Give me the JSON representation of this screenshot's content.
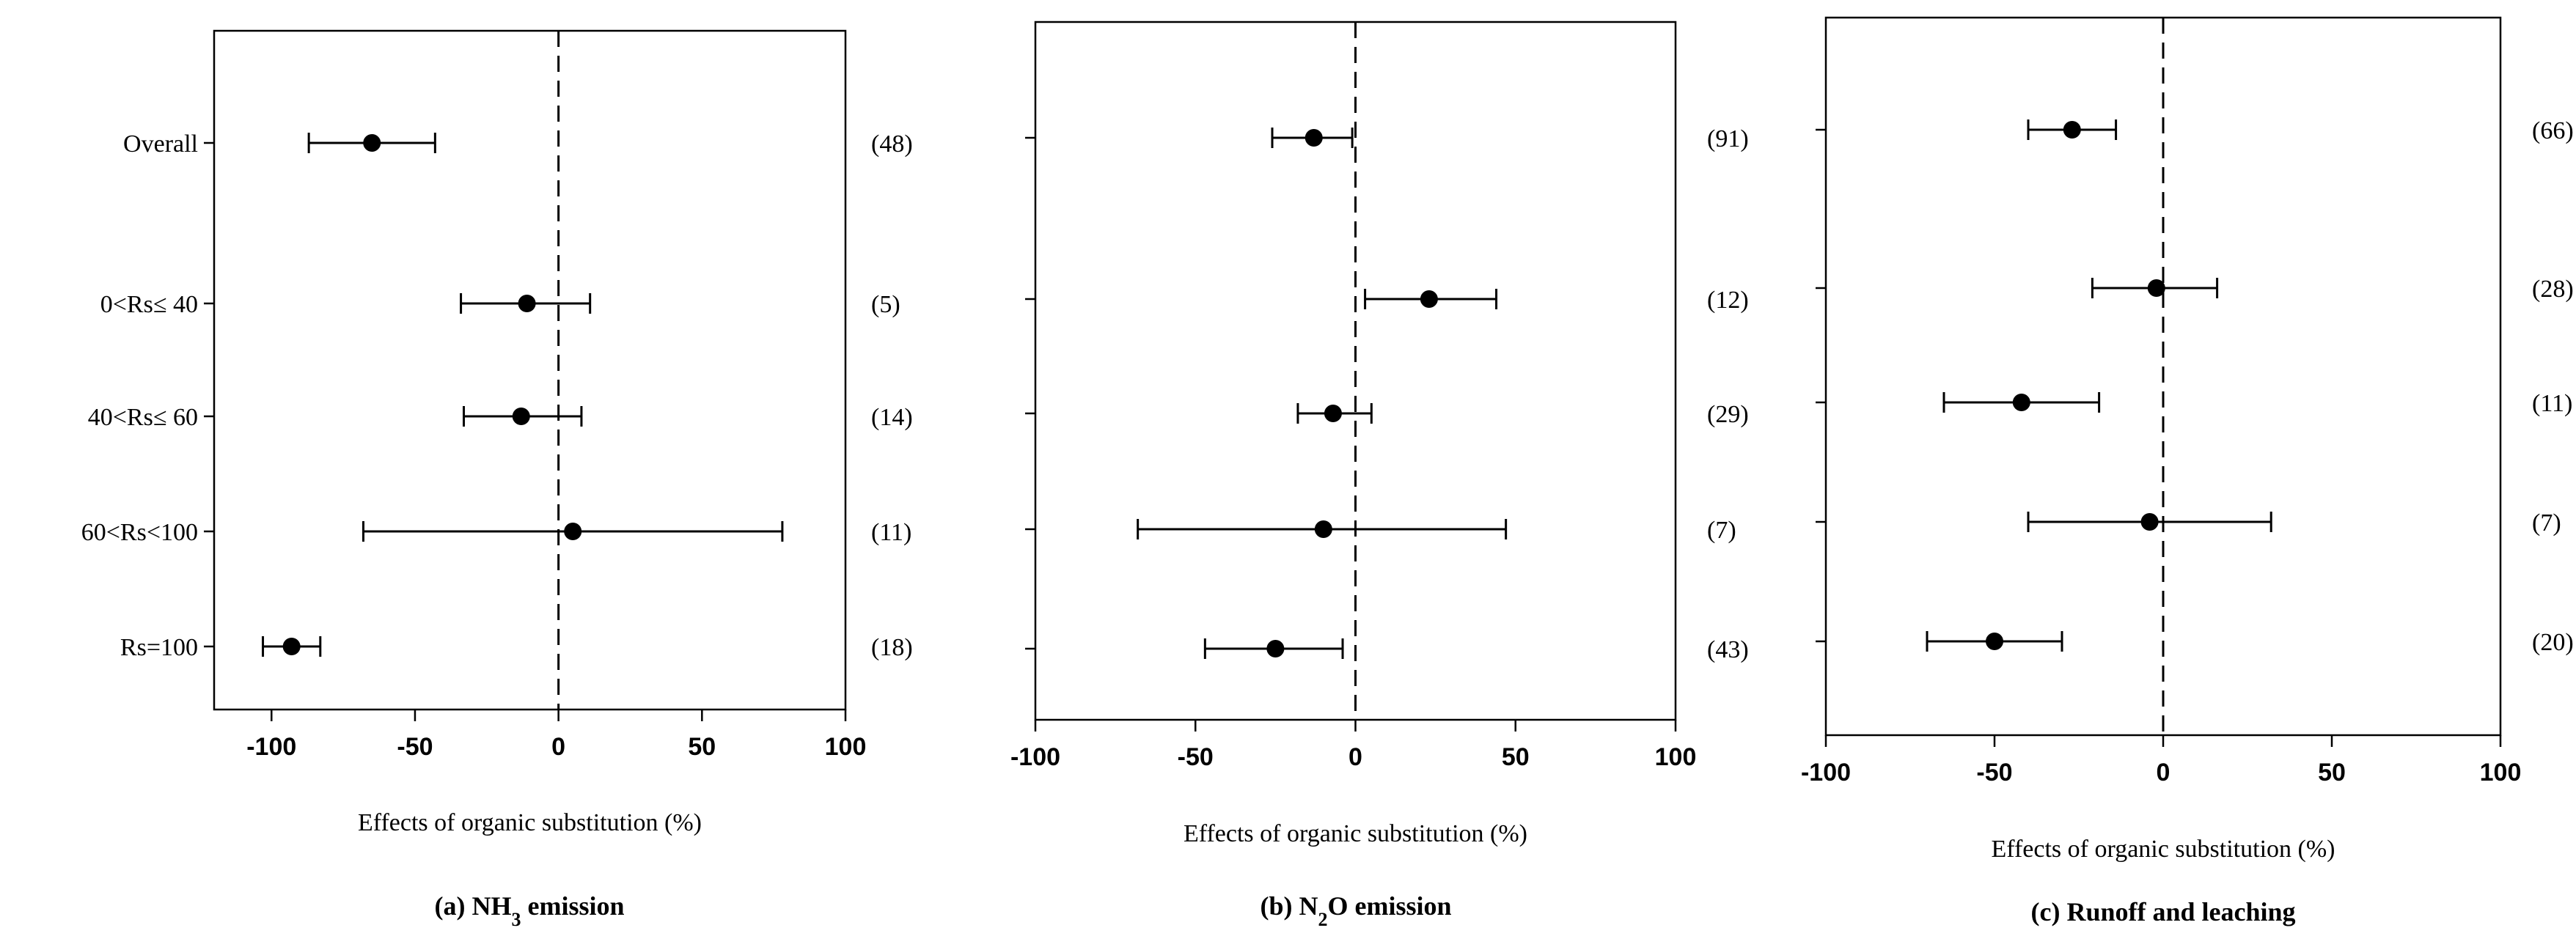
{
  "chart_data": [
    {
      "type": "forest",
      "title": "(a) NH3 emission",
      "title_parts": [
        {
          "text": "(a) NH",
          "sub": false
        },
        {
          "text": "3",
          "sub": true
        },
        {
          "text": " emission",
          "sub": false
        }
      ],
      "xlabel": "Effects of organic substitution (%)",
      "xlim": [
        -120,
        100
      ],
      "xticks": [
        -100,
        -50,
        0,
        50,
        100
      ],
      "reference_line": 0,
      "categories": [
        "Overall",
        "0<Rs≤ 40",
        "40<Rs≤ 60",
        "60<Rs<100",
        "Rs=100"
      ],
      "estimates": [
        -65,
        -11,
        -13,
        5,
        -93
      ],
      "ci_low": [
        -87,
        -34,
        -33,
        -68,
        -103
      ],
      "ci_high": [
        -43,
        11,
        8,
        78,
        -83
      ],
      "n_labels": [
        "(48)",
        "(5)",
        "(14)",
        "(11)",
        "(18)"
      ]
    },
    {
      "type": "forest",
      "title": "(b) N2O emission",
      "title_parts": [
        {
          "text": "(b) N",
          "sub": false
        },
        {
          "text": "2",
          "sub": true
        },
        {
          "text": "O emission",
          "sub": false
        }
      ],
      "xlabel": "Effects of organic substitution (%)",
      "xlim": [
        -100,
        100
      ],
      "xticks": [
        -100,
        -50,
        0,
        50,
        100
      ],
      "reference_line": 0,
      "categories": [
        "",
        "",
        "",
        "",
        ""
      ],
      "estimates": [
        -13,
        23,
        -7,
        -10,
        -25
      ],
      "ci_low": [
        -26,
        3,
        -18,
        -68,
        -47
      ],
      "ci_high": [
        -1,
        44,
        5,
        47,
        -4
      ],
      "n_labels": [
        "(91)",
        "(12)",
        "(29)",
        "(7)",
        "(43)"
      ]
    },
    {
      "type": "forest",
      "title": "(c) Runoff and leaching",
      "title_parts": [
        {
          "text": "(c) Runoff and leaching",
          "sub": false
        }
      ],
      "xlabel": "Effects of organic substitution (%)",
      "xlim": [
        -100,
        100
      ],
      "xticks": [
        -100,
        -50,
        0,
        50,
        100
      ],
      "reference_line": 0,
      "categories": [
        "",
        "",
        "",
        "",
        ""
      ],
      "estimates": [
        -27,
        -2,
        -42,
        -4,
        -50
      ],
      "ci_low": [
        -40,
        -21,
        -65,
        -40,
        -70
      ],
      "ci_high": [
        -14,
        16,
        -19,
        32,
        -30
      ],
      "n_labels": [
        "(66)",
        "(28)",
        "(11)",
        "(7)",
        "(20)"
      ]
    }
  ]
}
